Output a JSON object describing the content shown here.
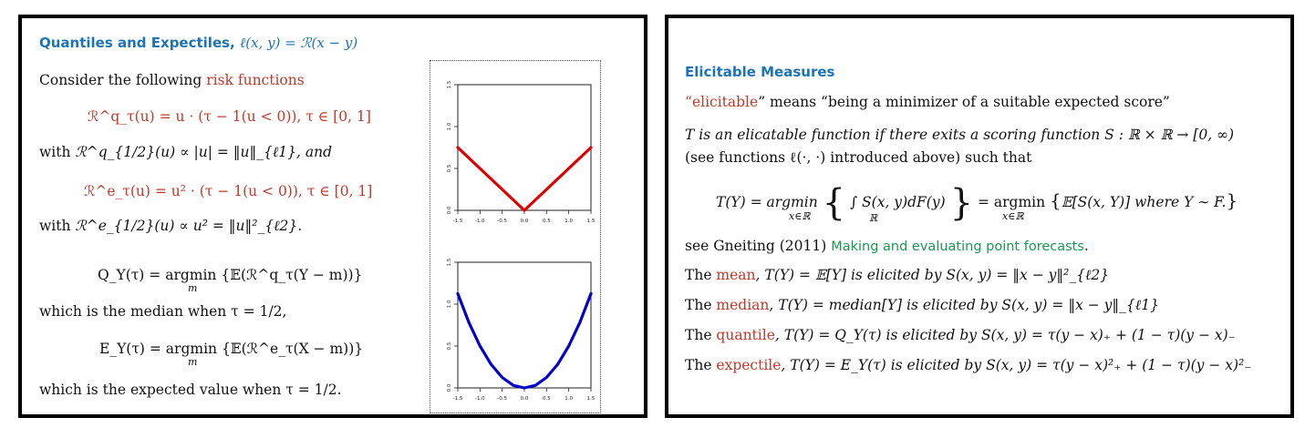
{
  "left_slide": {
    "title_text": "Quantiles and Expectiles,",
    "title_math": "ℓ(x, y) = ℛ(x − y)",
    "intro_plain": "Consider the following ",
    "intro_red": "risk functions",
    "eq_quantile_risk": "ℛ^q_τ(u) = u · (τ − 1(u < 0)),  τ ∈ [0, 1]",
    "with1_plain": "with ",
    "with1_math": "ℛ^q_{1/2}(u) ∝ |u| = ‖u‖_{ℓ1}, and",
    "eq_expectile_risk": "ℛ^e_τ(u) = u² · (τ − 1(u < 0)),  τ ∈ [0, 1]",
    "with2_plain": "with ",
    "with2_math": "ℛ^e_{1/2}(u) ∝ u² = ‖u‖²_{ℓ2}.",
    "eq_Q": "Q_Y(τ) = argmin {𝔼(ℛ^q_τ(Y − m))}",
    "eq_Q_sub": "m",
    "median_line": "which is the median when τ = 1/2,",
    "eq_E": "E_Y(τ) = argmin {𝔼(ℛ^e_τ(X − m))}",
    "eq_E_sub": "m",
    "expected_line": "which is the expected value when τ = 1/2."
  },
  "right_slide": {
    "title_text": "Elicitable Measures",
    "def_red": "elicitable",
    "def_rest": "” means “being a minimizer of a suitable expected score”",
    "def_open_quote": "“",
    "line_T1": "T is an elicatable function if there exits a scoring function S : ℝ × ℝ → [0, ∞)",
    "line_T2": "(see functions ℓ(·, ·) introduced above) such that",
    "big_eq_left": "T(Y) = argmin",
    "big_eq_integral": "∫ S(x, y)dF(y)",
    "big_eq_mid": "= argmin",
    "big_eq_right": "𝔼[S(x, Y)] where Y ∼ F.",
    "big_eq_sub1": "x∈ℝ",
    "big_eq_sub2": "x∈ℝ",
    "big_eq_int_sub": "ℝ",
    "ref_plain": "see Gneiting (2011) ",
    "ref_green": "Making and evaluating point forecasts",
    "ref_end": ".",
    "items": [
      {
        "prefix": "The ",
        "term": "mean",
        "rest": ", T(Y) = 𝔼[Y] is elicited by S(x, y) = ‖x − y‖²_{ℓ2}"
      },
      {
        "prefix": "The ",
        "term": "median",
        "rest": ", T(Y) = median[Y] is elicited by S(x, y) = ‖x − y‖_{ℓ1}"
      },
      {
        "prefix": "The ",
        "term": "quantile",
        "rest": ", T(Y) = Q_Y(τ) is elicited by S(x, y) = τ(y − x)₊ + (1 − τ)(y − x)₋"
      },
      {
        "prefix": "The ",
        "term": "expectile",
        "rest": ", T(Y) = E_Y(τ) is elicited by S(x, y) = τ(y − x)²₊ + (1 − τ)(y − x)²₋"
      }
    ]
  },
  "chart_data": [
    {
      "type": "line",
      "x": [
        -1.5,
        0.0,
        1.5
      ],
      "y": [
        0.75,
        0.0,
        0.75
      ],
      "xticks": [
        "-1.5",
        "-1.0",
        "-0.5",
        "0.0",
        "0.5",
        "1.0",
        "1.5"
      ],
      "yticks": [
        "0.0",
        "0.5",
        "1.0",
        "1.5"
      ],
      "xlim": [
        -1.5,
        1.5
      ],
      "ylim": [
        0,
        1.5
      ],
      "color": "#dd0000"
    },
    {
      "type": "line",
      "x": [
        -1.5,
        -1.25,
        -1.0,
        -0.75,
        -0.5,
        -0.25,
        0.0,
        0.25,
        0.5,
        0.75,
        1.0,
        1.25,
        1.5
      ],
      "y": [
        1.125,
        0.781,
        0.5,
        0.281,
        0.125,
        0.031,
        0.0,
        0.031,
        0.125,
        0.281,
        0.5,
        0.781,
        1.125
      ],
      "xticks": [
        "-1.5",
        "-1.0",
        "-0.5",
        "0.0",
        "0.5",
        "1.0",
        "1.5"
      ],
      "yticks": [
        "0.0",
        "0.5",
        "1.0",
        "1.5"
      ],
      "xlim": [
        -1.5,
        1.5
      ],
      "ylim": [
        0,
        1.5
      ],
      "color": "#0000cc"
    }
  ]
}
